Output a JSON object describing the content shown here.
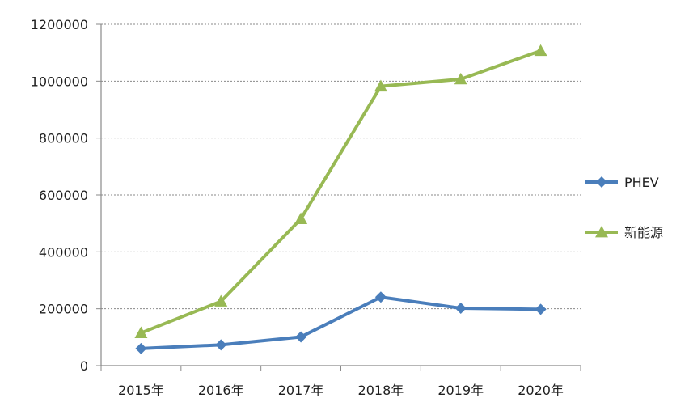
{
  "chart_data": {
    "type": "line",
    "title": "",
    "xlabel": "",
    "ylabel": "",
    "categories": [
      "2015年",
      "2016年",
      "2017年",
      "2018年",
      "2019年",
      "2020年"
    ],
    "ylim": [
      0,
      1200000
    ],
    "yticks": [
      0,
      200000,
      400000,
      600000,
      800000,
      1000000,
      1200000
    ],
    "ytick_labels": [
      "0",
      "200000",
      "400000",
      "600000",
      "800000",
      "1000000",
      "1200000"
    ],
    "grid": "horizontal dashed",
    "legend_position": "right",
    "series": [
      {
        "name": "PHEV",
        "marker": "diamond",
        "color": "#4a7ebb",
        "values": [
          60000,
          73000,
          101000,
          241000,
          202000,
          198000
        ]
      },
      {
        "name": "新能源",
        "marker": "triangle",
        "color": "#98b954",
        "values": [
          115000,
          226000,
          516000,
          982000,
          1007000,
          1107000
        ]
      }
    ]
  }
}
